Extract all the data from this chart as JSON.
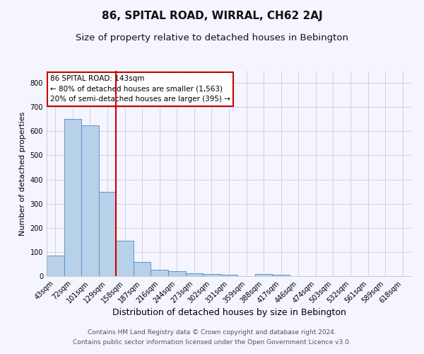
{
  "title": "86, SPITAL ROAD, WIRRAL, CH62 2AJ",
  "subtitle": "Size of property relative to detached houses in Bebington",
  "xlabel": "Distribution of detached houses by size in Bebington",
  "ylabel": "Number of detached properties",
  "categories": [
    "43sqm",
    "72sqm",
    "101sqm",
    "129sqm",
    "158sqm",
    "187sqm",
    "216sqm",
    "244sqm",
    "273sqm",
    "302sqm",
    "331sqm",
    "359sqm",
    "388sqm",
    "417sqm",
    "446sqm",
    "474sqm",
    "503sqm",
    "532sqm",
    "561sqm",
    "589sqm",
    "618sqm"
  ],
  "values": [
    85,
    650,
    625,
    348,
    147,
    58,
    25,
    20,
    13,
    8,
    5,
    0,
    8,
    7,
    0,
    0,
    0,
    0,
    0,
    0,
    0
  ],
  "bar_color": "#b8d0e8",
  "bar_edge_color": "#5a96c8",
  "vline_x": 3.5,
  "vline_color": "#cc0000",
  "annotation_title": "86 SPITAL ROAD: 143sqm",
  "annotation_line1": "← 80% of detached houses are smaller (1,563)",
  "annotation_line2": "20% of semi-detached houses are larger (395) →",
  "annotation_box_color": "#ffffff",
  "annotation_box_edge": "#cc0000",
  "footer1": "Contains HM Land Registry data © Crown copyright and database right 2024.",
  "footer2": "Contains public sector information licensed under the Open Government Licence v3.0.",
  "bg_color": "#f5f5ff",
  "grid_color": "#ccccdd",
  "ylim": [
    0,
    850
  ],
  "title_fontsize": 11,
  "subtitle_fontsize": 9.5,
  "xlabel_fontsize": 9,
  "ylabel_fontsize": 8,
  "tick_fontsize": 7,
  "footer_fontsize": 6.5,
  "annotation_fontsize": 7.5
}
